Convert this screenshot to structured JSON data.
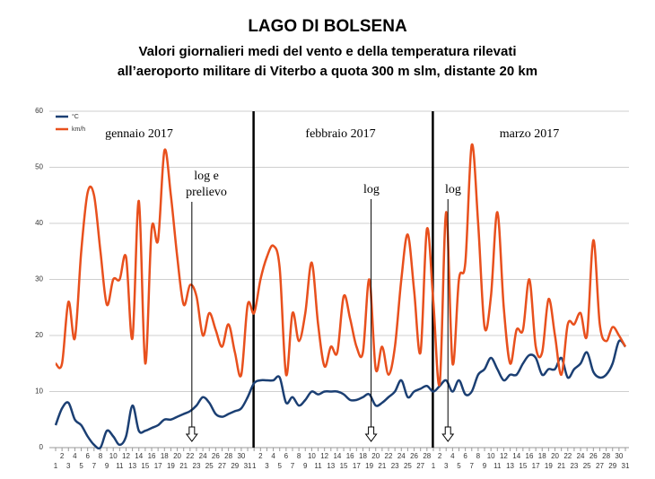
{
  "chart_data": {
    "type": "line",
    "title": "LAGO DI BOLSENA",
    "subtitle": [
      "Valori giornalieri medi del vento e della temperatura rilevati",
      "all’aeroporto militare di Viterbo a quota 300 m slm, distante 20 km"
    ],
    "categories": [
      "1",
      "2",
      "3",
      "4",
      "5",
      "6",
      "7",
      "8",
      "9",
      "10",
      "11",
      "12",
      "13",
      "14",
      "15",
      "16",
      "17",
      "18",
      "19",
      "20",
      "21",
      "22",
      "23",
      "24",
      "25",
      "26",
      "27",
      "28",
      "29",
      "30",
      "31",
      "1",
      "2",
      "3",
      "4",
      "5",
      "6",
      "7",
      "8",
      "9",
      "10",
      "11",
      "12",
      "13",
      "14",
      "15",
      "16",
      "17",
      "18",
      "19",
      "20",
      "21",
      "22",
      "23",
      "24",
      "25",
      "26",
      "27",
      "28",
      "1",
      "2",
      "3",
      "4",
      "5",
      "6",
      "7",
      "8",
      "9",
      "10",
      "11",
      "12",
      "13",
      "14",
      "15",
      "16",
      "17",
      "18",
      "19",
      "20",
      "21",
      "22",
      "23",
      "24",
      "25",
      "26",
      "27",
      "28",
      "29",
      "30",
      "31"
    ],
    "series": [
      {
        "name": "°C",
        "color": "#1b3f73",
        "values": [
          4,
          7,
          8,
          5,
          4,
          2,
          0.5,
          0,
          3,
          2,
          0.5,
          2,
          7.5,
          3,
          3,
          3.5,
          4,
          5,
          5,
          5.5,
          6,
          6.5,
          7.5,
          9,
          8,
          6,
          5.5,
          6,
          6.5,
          7,
          9,
          11.5,
          12,
          12,
          12,
          12.5,
          8,
          9,
          7.5,
          8.5,
          10,
          9.5,
          10,
          10,
          10,
          9.5,
          8.5,
          8.5,
          9,
          9.5,
          7.5,
          8,
          9,
          10,
          12,
          9,
          10,
          10.5,
          11,
          10,
          11,
          12,
          10,
          12,
          9.5,
          10,
          13,
          14,
          16,
          14,
          12,
          13,
          13,
          15,
          16.5,
          16,
          13,
          14,
          14,
          16,
          12.5,
          14,
          15,
          17,
          13.5,
          12.5,
          13,
          15,
          19,
          18
        ]
      },
      {
        "name": "km/h",
        "color": "#e8501d",
        "values": [
          15,
          15,
          26,
          19.5,
          35,
          45.5,
          45,
          35,
          25.5,
          30,
          30,
          34,
          19.5,
          44,
          15,
          39,
          37,
          53,
          45,
          34,
          25.5,
          29,
          27,
          20,
          24,
          21,
          18,
          22,
          17,
          13,
          25.5,
          24,
          30,
          34,
          36,
          32,
          13,
          24,
          19,
          24,
          33,
          22,
          14.5,
          18,
          17,
          27,
          23,
          18,
          17,
          30,
          14,
          18,
          13,
          18,
          30,
          38,
          28,
          17,
          39,
          26,
          11.5,
          42,
          15,
          30,
          33,
          54,
          40,
          21.5,
          27,
          42,
          25,
          15,
          21,
          21,
          30,
          18,
          17,
          26.5,
          20,
          13,
          22,
          22,
          24,
          20,
          37,
          22,
          19,
          21.5,
          20,
          18
        ]
      }
    ],
    "months": [
      "gennaio  2017",
      "febbraio  2017",
      "marzo  2017"
    ],
    "annotations": [
      "log e",
      "prelievo",
      "log",
      "log"
    ],
    "ylim": [
      0,
      60
    ],
    "yticks": [
      0,
      10,
      20,
      30,
      40,
      50,
      60
    ],
    "grid": true
  }
}
